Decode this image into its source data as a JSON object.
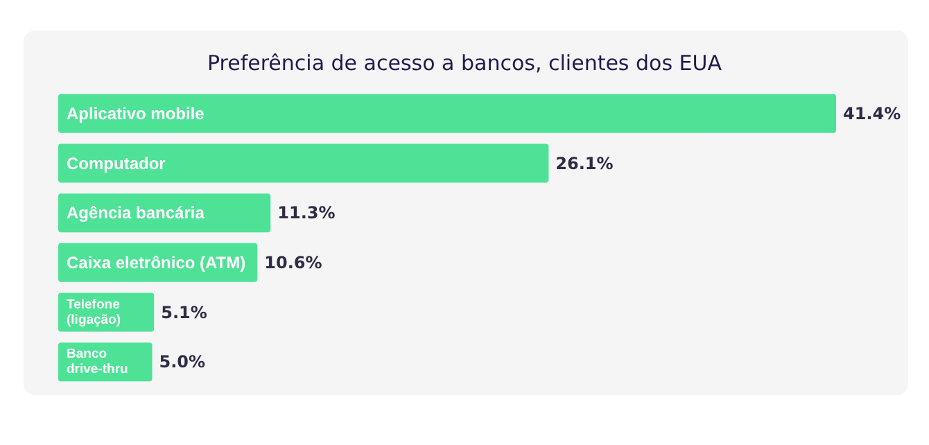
{
  "chart_data": {
    "type": "bar",
    "orientation": "horizontal",
    "title": "Preferência de acesso a bancos, clientes dos EUA",
    "categories": [
      "Aplicativo mobile",
      "Computador",
      "Agência bancária",
      "Caixa eletrônico (ATM)",
      "Telefone (ligação)",
      "Banco drive-thru"
    ],
    "values": [
      41.4,
      26.1,
      11.3,
      10.6,
      5.1,
      5.0
    ],
    "value_labels": [
      "41.4%",
      "26.1%",
      "11.3%",
      "10.6%",
      "5.1%",
      "5.0%"
    ],
    "color": "#4ee296"
  }
}
